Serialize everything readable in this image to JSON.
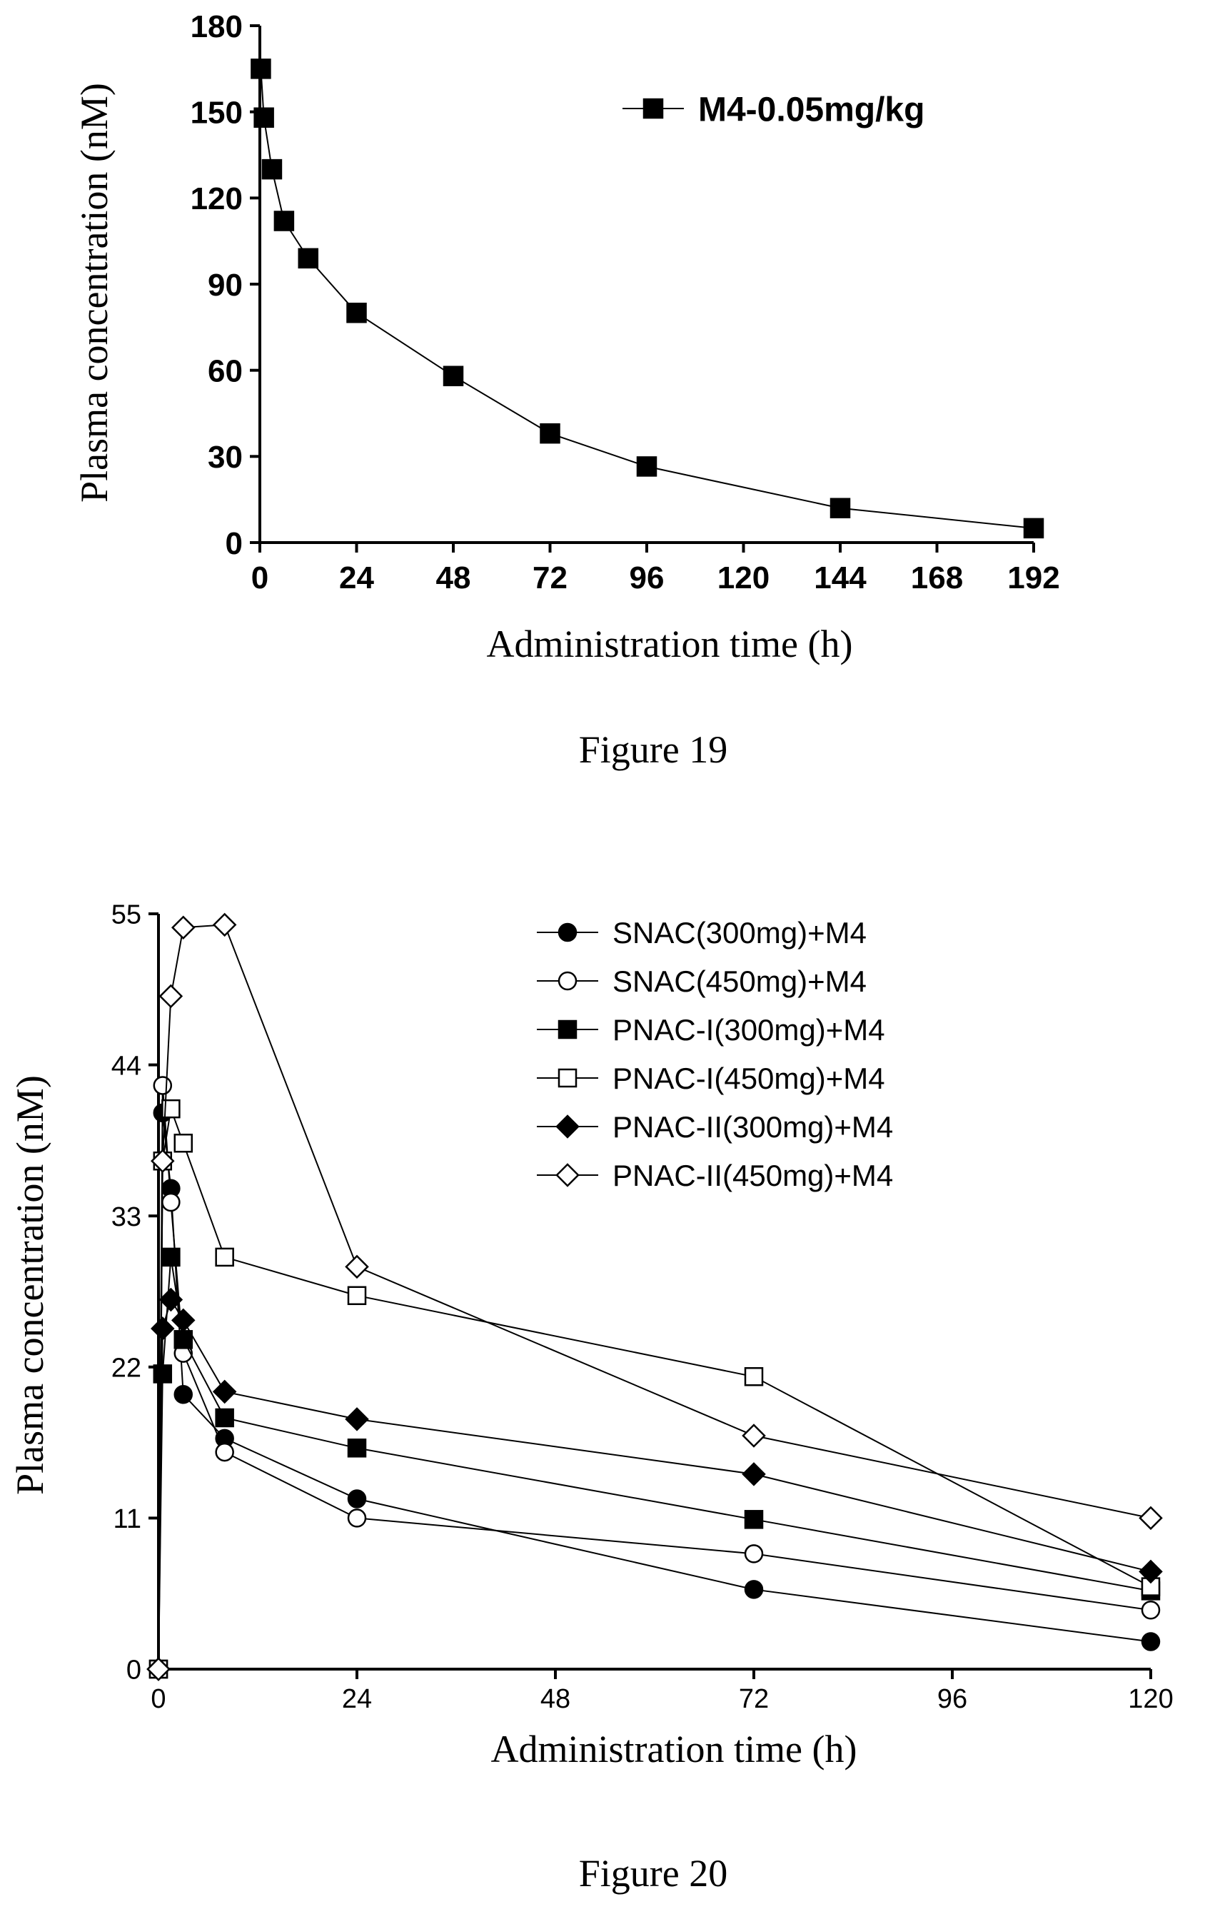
{
  "chart_data": [
    {
      "type": "line",
      "caption": "Figure 19",
      "xlabel": "Administration time (h)",
      "ylabel": "Plasma concentration (nM)",
      "xlim": [
        0,
        192
      ],
      "ylim": [
        0,
        180
      ],
      "xticks": [
        "0",
        "24",
        "48",
        "72",
        "96",
        "120",
        "144",
        "168",
        "192"
      ],
      "yticks": [
        "0",
        "30",
        "60",
        "90",
        "120",
        "150",
        "180"
      ],
      "legend_position": "top-right",
      "series": [
        {
          "name": "M4-0.05mg/kg",
          "marker": "filled-square",
          "x": [
            0.25,
            1,
            3,
            6,
            12,
            24,
            48,
            72,
            96,
            144,
            192
          ],
          "y": [
            165,
            148,
            130,
            112,
            99,
            80,
            58,
            38,
            26.5,
            12,
            5
          ]
        }
      ]
    },
    {
      "type": "line",
      "caption": "Figure 20",
      "xlabel": "Administration time (h)",
      "ylabel": "Plasma concentration (nM)",
      "xlim": [
        0,
        120
      ],
      "ylim": [
        0,
        55
      ],
      "xticks": [
        "0",
        "24",
        "48",
        "72",
        "96",
        "120"
      ],
      "yticks": [
        "0",
        "11",
        "22",
        "33",
        "44",
        "55"
      ],
      "legend_position": "top-right",
      "series": [
        {
          "name": "SNAC(300mg)+M4",
          "marker": "filled-circle",
          "x": [
            0,
            0.5,
            1.5,
            3,
            8,
            24,
            72,
            120
          ],
          "y": [
            0,
            40.5,
            35,
            20,
            16.8,
            12.4,
            5.8,
            2
          ]
        },
        {
          "name": "SNAC(450mg)+M4",
          "marker": "open-circle",
          "x": [
            0,
            0.5,
            1.5,
            3,
            8,
            24,
            72,
            120
          ],
          "y": [
            0,
            42.5,
            34,
            23,
            15.8,
            11,
            8.4,
            4.3
          ]
        },
        {
          "name": "PNAC-I(300mg)+M4",
          "marker": "filled-square",
          "x": [
            0,
            0.5,
            1.5,
            3,
            8,
            24,
            72,
            120
          ],
          "y": [
            0,
            21.5,
            30,
            24,
            18.3,
            16.1,
            10.9,
            5.7
          ]
        },
        {
          "name": "PNAC-I(450mg)+M4",
          "marker": "open-square",
          "x": [
            0,
            0.5,
            1.5,
            3,
            8,
            24,
            72,
            120
          ],
          "y": [
            0,
            37,
            40.8,
            38.3,
            30,
            27.2,
            21.3,
            6
          ]
        },
        {
          "name": "PNAC-II(300mg)+M4",
          "marker": "filled-diamond",
          "x": [
            0,
            0.5,
            1.5,
            3,
            8,
            24,
            72,
            120
          ],
          "y": [
            0,
            24.8,
            26.9,
            25.4,
            20.2,
            18.2,
            14.2,
            7.1
          ]
        },
        {
          "name": "PNAC-II(450mg)+M4",
          "marker": "open-diamond",
          "x": [
            0,
            0.5,
            1.5,
            3,
            8,
            24,
            72,
            120
          ],
          "y": [
            0,
            37,
            49,
            54,
            54.2,
            29.3,
            17,
            11
          ]
        }
      ]
    }
  ]
}
